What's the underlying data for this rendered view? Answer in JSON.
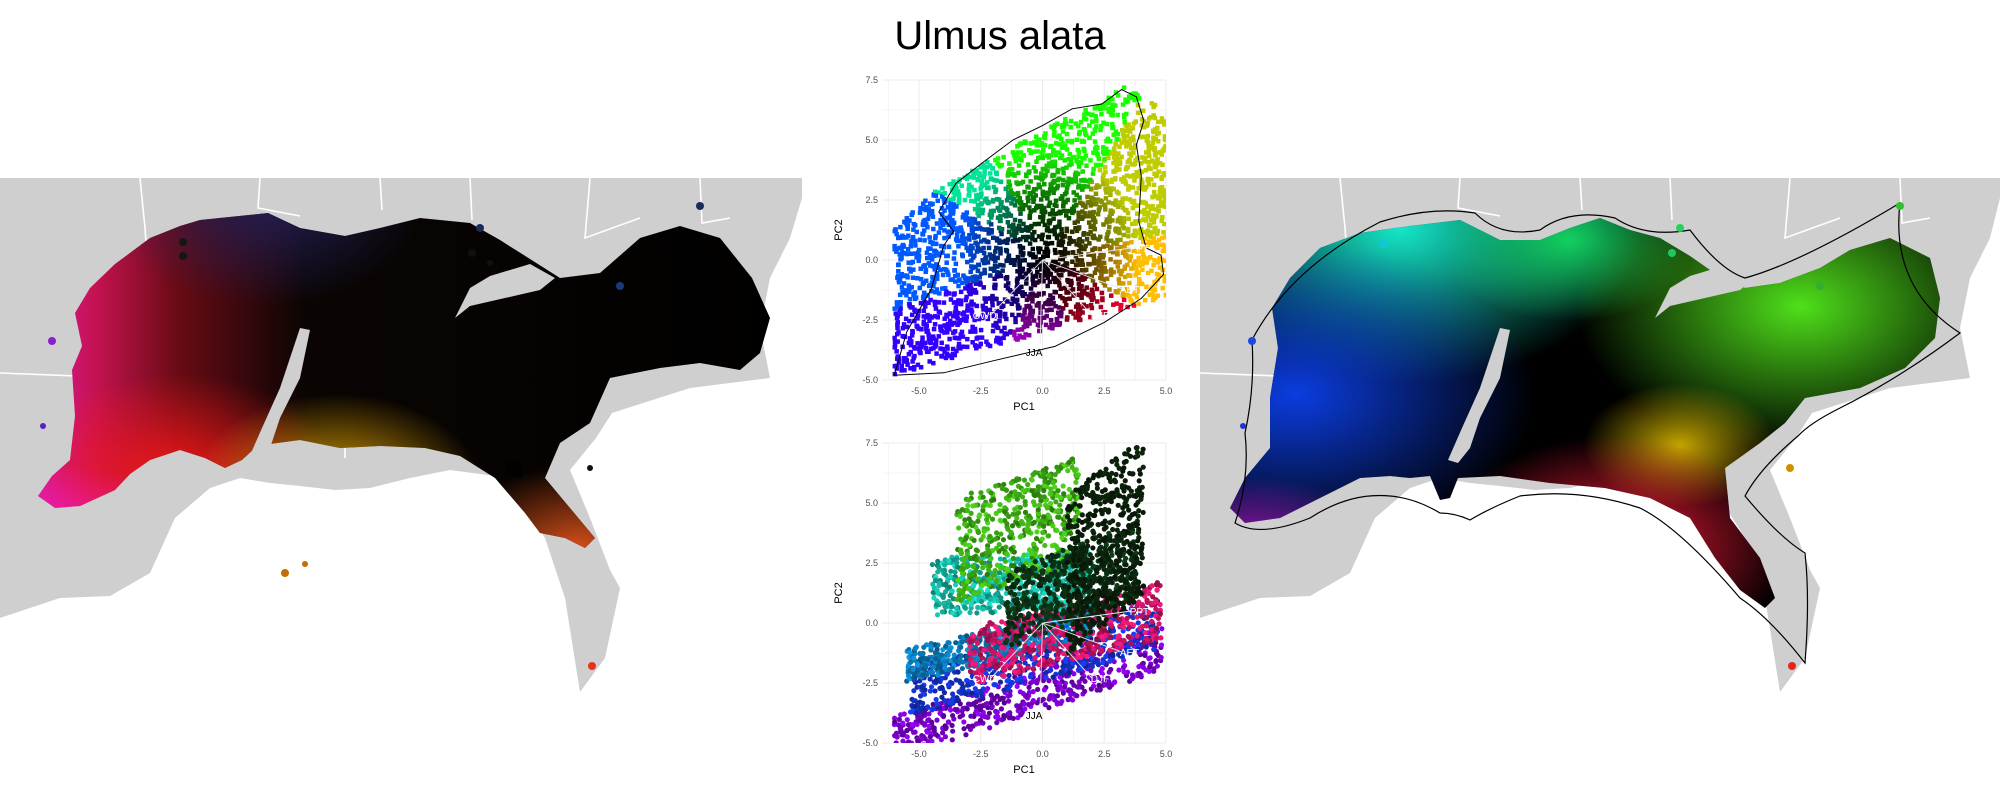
{
  "title": "Ulmus alata",
  "colors": {
    "land": "#cfcfcf",
    "border": "#ffffff",
    "grid": "#ebebeb",
    "axis_text": "#4d4d4d"
  },
  "chart_data": [
    {
      "type": "map",
      "panel": "left"
    },
    {
      "type": "scatter",
      "panel": "center-top",
      "xlabel": "PC1",
      "ylabel": "PC2",
      "xlim": [
        -6.5,
        5.0
      ],
      "ylim": [
        -5.0,
        7.5
      ],
      "xticks": [
        "-5.0",
        "-2.5",
        "0.0",
        "2.5",
        "5.0"
      ],
      "yticks": [
        "-5.0",
        "-2.5",
        "0.0",
        "2.5",
        "5.0",
        "7.5"
      ],
      "loadings": [
        {
          "label": "PPT",
          "x": 3.6,
          "y": 0.5
        },
        {
          "label": "AET",
          "x": 3.2,
          "y": -1.2
        },
        {
          "label": "DJF",
          "x": 2.0,
          "y": -2.3
        },
        {
          "label": "JJA",
          "x": -0.1,
          "y": -3.5
        },
        {
          "label": "CWD",
          "x": -2.1,
          "y": -2.3
        }
      ]
    },
    {
      "type": "scatter",
      "panel": "center-bottom",
      "xlabel": "PC1",
      "ylabel": "PC2",
      "xlim": [
        -6.5,
        5.0
      ],
      "ylim": [
        -5.0,
        7.5
      ],
      "xticks": [
        "-5.0",
        "-2.5",
        "0.0",
        "2.5",
        "5.0"
      ],
      "yticks": [
        "-5.0",
        "-2.5",
        "0.0",
        "2.5",
        "5.0",
        "7.5"
      ],
      "loadings": [
        {
          "label": "PPT",
          "x": 3.6,
          "y": 0.5
        },
        {
          "label": "AET",
          "x": 3.2,
          "y": -1.2
        },
        {
          "label": "DJF",
          "x": 2.0,
          "y": -2.3
        },
        {
          "label": "JJA",
          "x": -0.1,
          "y": -3.5
        },
        {
          "label": "CWD",
          "x": -2.1,
          "y": -2.3
        }
      ]
    },
    {
      "type": "map",
      "panel": "right"
    }
  ]
}
